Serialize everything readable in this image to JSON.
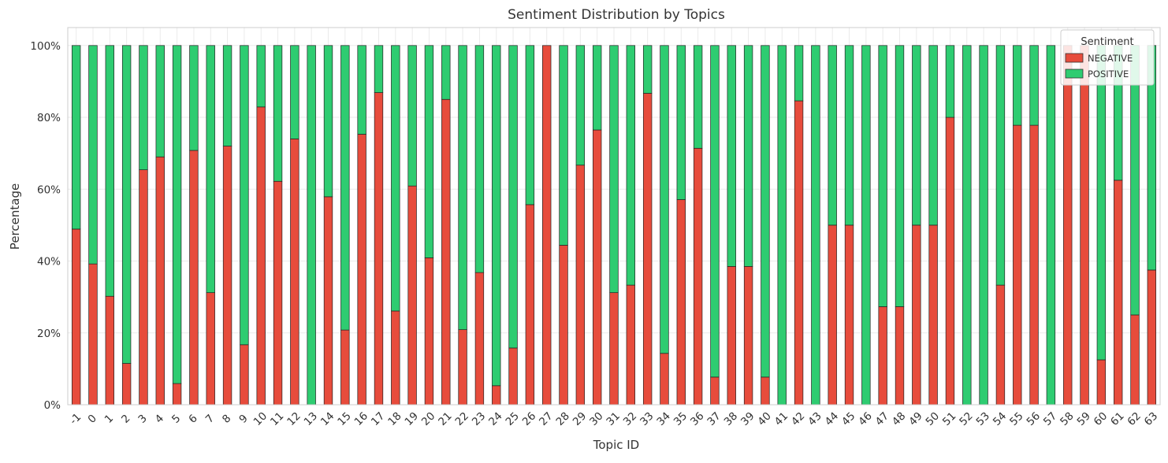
{
  "chart_data": {
    "type": "bar",
    "stacked": true,
    "title": "Sentiment Distribution by Topics",
    "xlabel": "Topic ID",
    "ylabel": "Percentage",
    "ylim": [
      0,
      100
    ],
    "yticks": [
      "0%",
      "20%",
      "40%",
      "60%",
      "80%",
      "100%"
    ],
    "grid": true,
    "legend": {
      "title": "Sentiment",
      "placement": "top-right"
    },
    "categories": [
      "-1",
      "0",
      "1",
      "2",
      "3",
      "4",
      "5",
      "6",
      "7",
      "8",
      "9",
      "10",
      "11",
      "12",
      "13",
      "14",
      "15",
      "16",
      "17",
      "18",
      "19",
      "20",
      "21",
      "22",
      "23",
      "24",
      "25",
      "26",
      "27",
      "28",
      "29",
      "30",
      "31",
      "32",
      "33",
      "34",
      "35",
      "36",
      "37",
      "38",
      "39",
      "40",
      "41",
      "42",
      "43",
      "44",
      "45",
      "46",
      "47",
      "48",
      "49",
      "50",
      "51",
      "52",
      "53",
      "54",
      "55",
      "56",
      "57",
      "58",
      "59",
      "60",
      "61",
      "62",
      "63"
    ],
    "series": [
      {
        "name": "NEGATIVE",
        "color": "#e74c3c",
        "values": [
          48.9,
          39.2,
          30.2,
          11.5,
          65.4,
          69.0,
          5.9,
          70.8,
          31.2,
          72.0,
          16.7,
          82.9,
          62.2,
          74.0,
          0,
          57.9,
          20.8,
          75.3,
          86.9,
          26.1,
          60.9,
          40.9,
          85.0,
          20.9,
          36.8,
          5.3,
          15.8,
          55.7,
          100,
          44.4,
          66.7,
          76.5,
          31.2,
          33.3,
          86.7,
          14.3,
          57.1,
          71.4,
          7.7,
          38.5,
          38.5,
          7.7,
          0,
          84.6,
          0,
          50,
          50,
          0,
          27.3,
          27.3,
          50,
          50,
          80,
          0,
          0,
          33.3,
          77.8,
          77.8,
          0,
          100,
          100,
          12.5,
          62.5,
          25,
          37.5
        ]
      },
      {
        "name": "POSITIVE",
        "color": "#2ecc71",
        "values": [
          51.1,
          60.8,
          69.8,
          88.5,
          34.6,
          31.0,
          94.1,
          29.2,
          68.8,
          28.0,
          83.3,
          17.1,
          37.8,
          26.0,
          100,
          42.1,
          79.2,
          24.7,
          13.1,
          73.9,
          39.1,
          59.1,
          15.0,
          79.1,
          63.2,
          94.7,
          84.2,
          44.3,
          0,
          55.6,
          33.3,
          23.5,
          68.8,
          66.7,
          13.3,
          85.7,
          42.9,
          28.6,
          92.3,
          61.5,
          61.5,
          92.3,
          100,
          15.4,
          100,
          50,
          50,
          100,
          72.7,
          72.7,
          50,
          50,
          20,
          100,
          100,
          66.7,
          22.2,
          22.2,
          100,
          0,
          0,
          87.5,
          37.5,
          75,
          62.5
        ]
      }
    ]
  }
}
